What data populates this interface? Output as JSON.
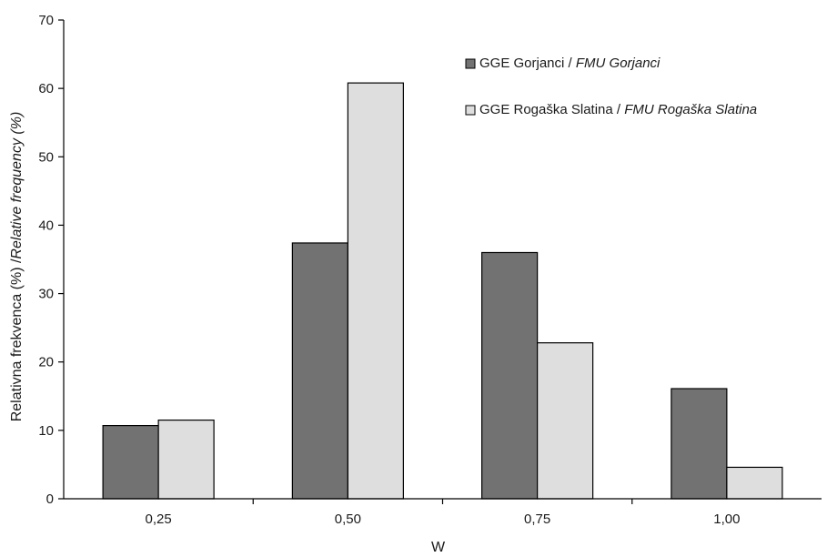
{
  "chart_data": {
    "type": "bar",
    "categories": [
      "0,25",
      "0,50",
      "0,75",
      "1,00"
    ],
    "series": [
      {
        "name": "GGE Gorjanci / FMU Gorjanci",
        "name_plain": "GGE Gorjanci / ",
        "name_italic": "FMU Gorjanci",
        "color": "#727272",
        "values": [
          10.7,
          37.4,
          36.0,
          16.1
        ]
      },
      {
        "name": "GGE Rogaška Slatina / FMU Rogaška Slatina",
        "name_plain": "GGE Rogaška Slatina / ",
        "name_italic": "FMU Rogaška Slatina",
        "color": "#dedede",
        "values": [
          11.5,
          60.8,
          22.8,
          4.6
        ]
      }
    ],
    "xlabel": "W",
    "ylabel_plain": "Relativna frekvenca (%) /",
    "ylabel_italic": "Relative frequency (%)",
    "ylim": [
      0,
      70
    ],
    "yticks": [
      0,
      10,
      20,
      30,
      40,
      50,
      60,
      70
    ],
    "grid": false,
    "legend_position": "top-right"
  }
}
